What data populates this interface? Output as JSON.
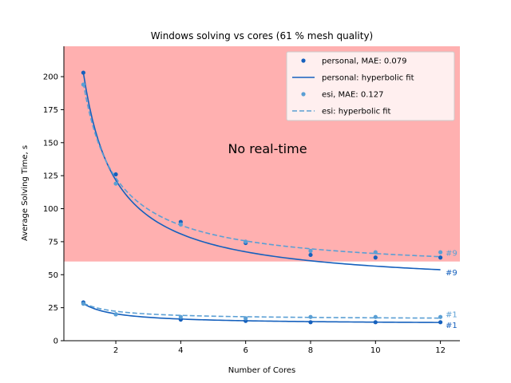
{
  "chart_data": {
    "type": "scatter",
    "title": "Windows solving vs cores (61 % mesh quality)",
    "xlabel": "Number of Cores",
    "ylabel": "Average Solving Time, s",
    "xlim": [
      0.4,
      12.6
    ],
    "ylim": [
      0,
      223
    ],
    "xticks": [
      2,
      4,
      6,
      8,
      10,
      12
    ],
    "yticks": [
      0,
      25,
      50,
      75,
      100,
      125,
      150,
      175,
      200
    ],
    "grid": false,
    "legend_position": "top-right",
    "colors": {
      "personal": "#1560bd",
      "esi": "#5a9fd4",
      "region": "#ffb0b0"
    },
    "region": {
      "label": "No real-time",
      "y_from": 60,
      "y_to": 223
    },
    "legend": [
      {
        "label": "personal, MAE: 0.079",
        "series": "personal",
        "kind": "marker"
      },
      {
        "label": "personal: hyperbolic fit",
        "series": "personal",
        "kind": "solid"
      },
      {
        "label": "esi, MAE: 0.127",
        "series": "esi",
        "kind": "marker"
      },
      {
        "label": "esi: hyperbolic fit",
        "series": "esi",
        "kind": "dashed"
      }
    ],
    "series": [
      {
        "name": "personal",
        "group": "#9",
        "x": [
          1,
          2,
          4,
          6,
          8,
          10,
          12
        ],
        "y": [
          203,
          126,
          90,
          74,
          65,
          63,
          63
        ],
        "fit": {
          "a": 162.8,
          "b": 40.2,
          "style": "solid"
        },
        "end_label": "#9"
      },
      {
        "name": "esi",
        "group": "#9",
        "x": [
          1,
          2,
          4,
          6,
          8,
          10,
          12
        ],
        "y": [
          194,
          119,
          88,
          75,
          68,
          67,
          67
        ],
        "fit": {
          "a": 143.3,
          "b": 51.7,
          "style": "dashed"
        },
        "end_label": "#9"
      },
      {
        "name": "personal",
        "group": "#1",
        "x": [
          1,
          2,
          4,
          6,
          8,
          10,
          12
        ],
        "y": [
          29,
          20,
          16,
          15,
          14,
          14,
          14
        ],
        "fit": {
          "a": 15.7,
          "b": 12.5,
          "style": "solid"
        },
        "end_label": "#1"
      },
      {
        "name": "esi",
        "group": "#1",
        "x": [
          1,
          2,
          4,
          6,
          8,
          10,
          12
        ],
        "y": [
          28,
          20,
          18,
          17,
          18,
          18,
          18
        ],
        "fit": {
          "a": 12.4,
          "b": 16.1,
          "style": "dashed"
        },
        "end_label": "#1"
      }
    ]
  }
}
